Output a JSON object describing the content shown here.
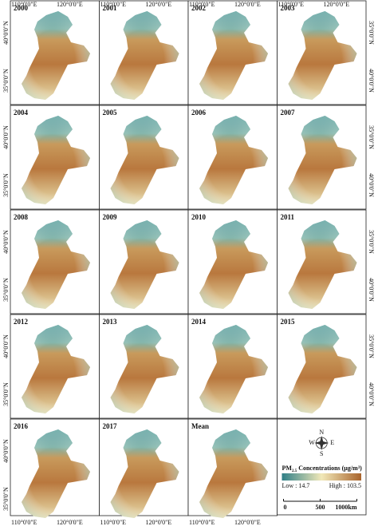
{
  "axes": {
    "lon": [
      "110°0'0\"E",
      "120°0'0\"E"
    ],
    "lat": [
      "40°0'0\"N",
      "35°0'0\"N"
    ]
  },
  "panels": [
    "2000",
    "2001",
    "2002",
    "2003",
    "2004",
    "2005",
    "2006",
    "2007",
    "2008",
    "2009",
    "2010",
    "2011",
    "2012",
    "2013",
    "2014",
    "2015",
    "2016",
    "2017",
    "Mean"
  ],
  "legend": {
    "compass": {
      "n": "N",
      "s": "S",
      "e": "E",
      "w": "W"
    },
    "title": {
      "prefix": "PM",
      "sub": "2.5",
      "rest": " Concentrations (μg/m³)"
    },
    "low": "Low : 14.7",
    "high": "High : 103.5",
    "scale": [
      "0",
      "500",
      "1000km"
    ]
  }
}
